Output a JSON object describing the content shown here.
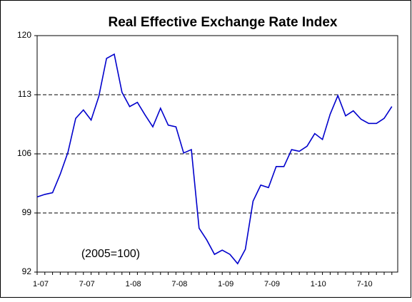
{
  "chart_data": {
    "type": "line",
    "title": "Real Effective Exchange Rate Index",
    "annotation": "(2005=100)",
    "categories": [
      "1-07",
      null,
      null,
      null,
      null,
      null,
      "7-07",
      null,
      null,
      null,
      null,
      null,
      "1-08",
      null,
      null,
      null,
      null,
      null,
      "7-08",
      null,
      null,
      null,
      null,
      null,
      "1-09",
      null,
      null,
      null,
      null,
      null,
      "7-09",
      null,
      null,
      null,
      null,
      null,
      "1-10",
      null,
      null,
      null,
      null,
      null,
      "7-10",
      null,
      null,
      null,
      null
    ],
    "series": [
      {
        "name": "Real Effective Exchange Rate Index",
        "color": "#0000cc",
        "values": [
          100.9,
          101.2,
          101.4,
          103.6,
          106.2,
          110.2,
          111.2,
          110.0,
          112.8,
          117.3,
          117.8,
          113.3,
          111.6,
          112.1,
          110.6,
          109.2,
          111.4,
          109.4,
          109.2,
          106.1,
          106.5,
          97.2,
          95.8,
          94.1,
          94.6,
          94.1,
          93.0,
          94.7,
          100.4,
          102.3,
          102.0,
          104.5,
          104.5,
          106.5,
          106.3,
          106.9,
          108.4,
          107.7,
          110.7,
          112.9,
          110.5,
          111.1,
          110.1,
          109.6,
          109.6,
          110.2,
          111.6
        ]
      }
    ],
    "ylim": [
      92,
      120
    ],
    "yticks": [
      92,
      99,
      106,
      113,
      120
    ],
    "grid": true
  }
}
